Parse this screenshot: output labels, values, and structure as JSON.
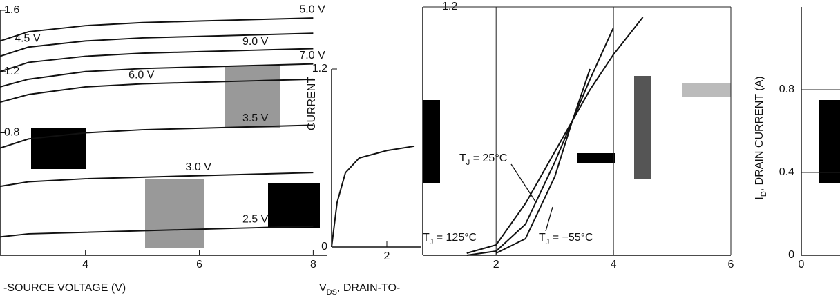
{
  "chart_data": [
    {
      "type": "line",
      "x": [
        2.5,
        3,
        4,
        5,
        6,
        7,
        8
      ],
      "series": [
        {
          "name": "2.5 V",
          "color": "#111111",
          "values": [
            0.12,
            0.14,
            0.15,
            0.16,
            0.17,
            0.18,
            0.19
          ]
        },
        {
          "name": "3.0 V",
          "color": "#111111",
          "values": [
            0.45,
            0.48,
            0.5,
            0.51,
            0.52,
            0.53,
            0.54
          ]
        },
        {
          "name": "3.5 V",
          "color": "#111111",
          "values": [
            0.7,
            0.76,
            0.8,
            0.82,
            0.83,
            0.84,
            0.85
          ]
        },
        {
          "name": "6.0 V",
          "color": "#111111",
          "values": [
            1.0,
            1.05,
            1.1,
            1.12,
            1.13,
            1.14,
            1.15
          ]
        },
        {
          "name": "7.0 V",
          "color": "#111111",
          "values": [
            1.1,
            1.15,
            1.2,
            1.22,
            1.23,
            1.24,
            1.25
          ]
        },
        {
          "name": "9.0 V",
          "color": "#111111",
          "values": [
            1.2,
            1.26,
            1.3,
            1.32,
            1.33,
            1.34,
            1.35
          ]
        },
        {
          "name": "4.5 V",
          "color": "#111111",
          "values": [
            1.3,
            1.36,
            1.4,
            1.42,
            1.43,
            1.44,
            1.45
          ]
        },
        {
          "name": "5.0 V",
          "color": "#111111",
          "values": [
            1.4,
            1.46,
            1.5,
            1.52,
            1.53,
            1.54,
            1.55
          ]
        }
      ],
      "xlim": [
        2.5,
        8.25
      ],
      "ylim": [
        0,
        1.6
      ],
      "xticks": [
        4,
        6,
        8
      ],
      "yticks": [
        0.8,
        1.2,
        1.6
      ],
      "grid": false,
      "x_label": {
        "text": "-SOURCE VOLTAGE (V)"
      }
    },
    {
      "type": "line",
      "x": [
        1.5,
        2,
        2.5,
        3,
        3.3,
        3.6,
        4,
        4.5
      ],
      "series": [
        {
          "color": "#111111",
          "values": [
            0.01,
            0.05,
            0.25,
            0.5,
            0.65,
            0.8,
            0.97,
            1.15
          ]
        },
        {
          "color": "#111111",
          "values": [
            0,
            0.02,
            0.15,
            0.45,
            0.65,
            0.85,
            1.1,
            null
          ]
        },
        {
          "color": "#111111",
          "values": [
            null,
            0.01,
            0.08,
            0.38,
            0.65,
            0.9,
            null,
            null
          ]
        }
      ],
      "annotations": [
        {
          "pre": "T",
          "sub": "J",
          "post": " = 25°C"
        },
        {
          "pre": "T",
          "sub": "J",
          "post": " = 125°C"
        },
        {
          "pre": "T",
          "sub": "J",
          "post": " = −55°C"
        }
      ],
      "xlim": [
        0.75,
        6
      ],
      "ylim": [
        0,
        1.2
      ],
      "xticks": [
        2,
        4,
        6
      ],
      "yticks": [
        1.2
      ],
      "grid": true
    },
    {
      "type": "line",
      "x": [
        0,
        0.2,
        0.5,
        1,
        2,
        3
      ],
      "series": [
        {
          "color": "#111111",
          "values": [
            0,
            0.3,
            0.5,
            0.6,
            0.65,
            0.68
          ]
        }
      ],
      "xlim": [
        0,
        3.25
      ],
      "ylim": [
        0,
        1.2
      ],
      "xticks": [
        2
      ],
      "yticks": [
        0,
        1.2
      ],
      "grid": false,
      "x_label": {
        "pre": "V",
        "sub": "DS",
        "post": ", DRAIN-TO-"
      },
      "y_label": {
        "post": "CURRENT"
      }
    },
    {
      "type": "line",
      "xlim": [
        0,
        1
      ],
      "ylim": [
        0,
        1.2
      ],
      "xticks": [
        0
      ],
      "yticks": [
        0,
        0.4,
        0.8
      ],
      "grid": true,
      "y_label": {
        "pre": "I",
        "sub": "D",
        "post": ", DRAIN CURRENT (A)"
      }
    }
  ]
}
